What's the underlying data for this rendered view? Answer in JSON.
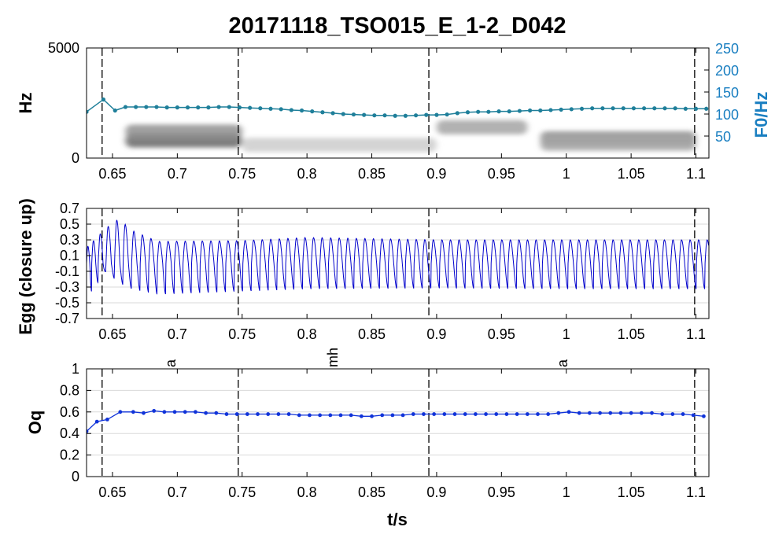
{
  "figure": {
    "title": "20171118_TSO015_E_1-2_D042",
    "xlabel": "t/s",
    "x_ticks": [
      0.65,
      0.7,
      0.75,
      0.8,
      0.85,
      0.9,
      0.95,
      1,
      1.05,
      1.1
    ],
    "x_tick_labels": [
      "0.65",
      "0.7",
      "0.75",
      "0.8",
      "0.85",
      "0.9",
      "0.95",
      "1",
      "1.05",
      "1.1"
    ],
    "xlim": [
      0.63,
      1.11
    ],
    "segment_boundaries": [
      0.642,
      0.747,
      0.894,
      1.099
    ],
    "segment_labels": [
      {
        "label": "a",
        "t": 0.695
      },
      {
        "label": "mh",
        "t": 0.82
      },
      {
        "label": "a",
        "t": 0.997
      }
    ]
  },
  "colors": {
    "f0_line": "#1f7f9a",
    "f0_axis": "#1a7fc1",
    "egg_line": "#0000cc",
    "oq_line": "#1033d9",
    "grid": "#dadada",
    "boundary": "#000000"
  },
  "chart_data": [
    {
      "type": "heatmap",
      "name": "spectrogram",
      "ylabel": "Hz",
      "ylim": [
        0,
        5000
      ],
      "y_tick_labels": [
        "0",
        "5000"
      ],
      "y_ticks": [
        0,
        5000
      ],
      "formant_bands": [
        {
          "t0": 0.66,
          "t1": 0.75,
          "f": 800,
          "strength": 0.75
        },
        {
          "t0": 0.66,
          "t1": 0.75,
          "f": 1200,
          "strength": 0.55
        },
        {
          "t0": 0.75,
          "t1": 0.9,
          "f": 600,
          "strength": 0.25
        },
        {
          "t0": 0.9,
          "t1": 0.97,
          "f": 1400,
          "strength": 0.45
        },
        {
          "t0": 0.98,
          "t1": 1.1,
          "f": 900,
          "strength": 0.55
        },
        {
          "t0": 0.98,
          "t1": 1.1,
          "f": 650,
          "strength": 0.45
        }
      ],
      "right_axis": {
        "ylabel": "F0/Hz",
        "ylim": [
          0,
          250
        ],
        "y_ticks": [
          50,
          100,
          150,
          200,
          250
        ],
        "y_tick_labels": [
          "50",
          "100",
          "150",
          "200",
          "250"
        ]
      },
      "f0_series": {
        "x": [
          0.63,
          0.643,
          0.652,
          0.66,
          0.668,
          0.676,
          0.684,
          0.692,
          0.7,
          0.708,
          0.716,
          0.724,
          0.732,
          0.74,
          0.748,
          0.756,
          0.764,
          0.772,
          0.78,
          0.788,
          0.796,
          0.804,
          0.812,
          0.82,
          0.828,
          0.836,
          0.844,
          0.852,
          0.86,
          0.868,
          0.876,
          0.884,
          0.892,
          0.9,
          0.908,
          0.916,
          0.924,
          0.932,
          0.94,
          0.948,
          0.956,
          0.964,
          0.972,
          0.98,
          0.988,
          0.996,
          1.004,
          1.012,
          1.02,
          1.028,
          1.036,
          1.044,
          1.052,
          1.06,
          1.068,
          1.076,
          1.084,
          1.092,
          1.1,
          1.108
        ],
        "y": [
          105,
          133,
          108,
          116,
          116,
          116,
          116,
          115,
          115,
          115,
          115,
          115,
          116,
          116,
          115,
          114,
          113,
          112,
          111,
          109,
          108,
          106,
          104,
          102,
          100,
          99,
          98,
          97,
          97,
          96,
          96,
          97,
          98,
          98,
          99,
          102,
          104,
          105,
          105,
          106,
          106,
          107,
          108,
          108,
          109,
          110,
          111,
          112,
          113,
          113,
          113,
          113,
          113,
          113,
          113,
          113,
          113,
          112,
          112,
          112
        ]
      }
    },
    {
      "type": "line",
      "name": "egg",
      "ylabel": "Egg (closure up)",
      "ylim": [
        -0.7,
        0.7
      ],
      "y_ticks": [
        -0.7,
        -0.5,
        -0.3,
        -0.1,
        0.1,
        0.3,
        0.5,
        0.7
      ],
      "y_tick_labels": [
        "-0.7",
        "-0.5",
        "-0.3",
        "-0.1",
        "0.1",
        "0.3",
        "0.5",
        "0.7"
      ],
      "grid": true,
      "waveform": {
        "t_start": 0.63,
        "t_end": 1.11,
        "cycle_periods": [
          0.004,
          0.005,
          0.006,
          0.0066,
          0.0066,
          0.0066,
          0.0066,
          0.0066,
          0.0066,
          0.0066
        ],
        "envelope": [
          {
            "t": 0.63,
            "hi": 0.2,
            "lo": -0.45
          },
          {
            "t": 0.645,
            "hi": 0.45,
            "lo": -0.1
          },
          {
            "t": 0.655,
            "hi": 0.57,
            "lo": -0.25
          },
          {
            "t": 0.665,
            "hi": 0.42,
            "lo": -0.33
          },
          {
            "t": 0.685,
            "hi": 0.28,
            "lo": -0.4
          },
          {
            "t": 0.75,
            "hi": 0.29,
            "lo": -0.36
          },
          {
            "t": 0.8,
            "hi": 0.33,
            "lo": -0.33
          },
          {
            "t": 0.9,
            "hi": 0.3,
            "lo": -0.32
          },
          {
            "t": 1.0,
            "hi": 0.3,
            "lo": -0.33
          },
          {
            "t": 1.11,
            "hi": 0.3,
            "lo": -0.33
          }
        ]
      }
    },
    {
      "type": "line",
      "name": "oq",
      "ylabel": "Oq",
      "ylim": [
        0,
        1
      ],
      "y_ticks": [
        0,
        0.2,
        0.4,
        0.6,
        0.8,
        1
      ],
      "y_tick_labels": [
        "0",
        "0.2",
        "0.4",
        "0.6",
        "0.8",
        "1"
      ],
      "grid": true,
      "series": {
        "x": [
          0.63,
          0.638,
          0.646,
          0.656,
          0.666,
          0.674,
          0.682,
          0.69,
          0.698,
          0.706,
          0.714,
          0.722,
          0.73,
          0.738,
          0.746,
          0.754,
          0.762,
          0.77,
          0.778,
          0.786,
          0.794,
          0.802,
          0.81,
          0.818,
          0.826,
          0.834,
          0.842,
          0.85,
          0.858,
          0.866,
          0.874,
          0.882,
          0.89,
          0.898,
          0.906,
          0.914,
          0.922,
          0.93,
          0.938,
          0.946,
          0.954,
          0.962,
          0.97,
          0.978,
          0.986,
          0.994,
          1.002,
          1.01,
          1.018,
          1.026,
          1.034,
          1.042,
          1.05,
          1.058,
          1.066,
          1.074,
          1.082,
          1.09,
          1.098,
          1.106
        ],
        "y": [
          0.42,
          0.51,
          0.53,
          0.6,
          0.6,
          0.59,
          0.61,
          0.6,
          0.6,
          0.6,
          0.6,
          0.59,
          0.59,
          0.58,
          0.58,
          0.58,
          0.58,
          0.58,
          0.58,
          0.58,
          0.57,
          0.57,
          0.57,
          0.57,
          0.57,
          0.57,
          0.56,
          0.56,
          0.57,
          0.57,
          0.57,
          0.58,
          0.58,
          0.58,
          0.58,
          0.58,
          0.58,
          0.58,
          0.58,
          0.58,
          0.58,
          0.58,
          0.58,
          0.58,
          0.58,
          0.59,
          0.6,
          0.59,
          0.59,
          0.59,
          0.59,
          0.59,
          0.59,
          0.59,
          0.59,
          0.58,
          0.58,
          0.58,
          0.57,
          0.56
        ]
      }
    }
  ]
}
